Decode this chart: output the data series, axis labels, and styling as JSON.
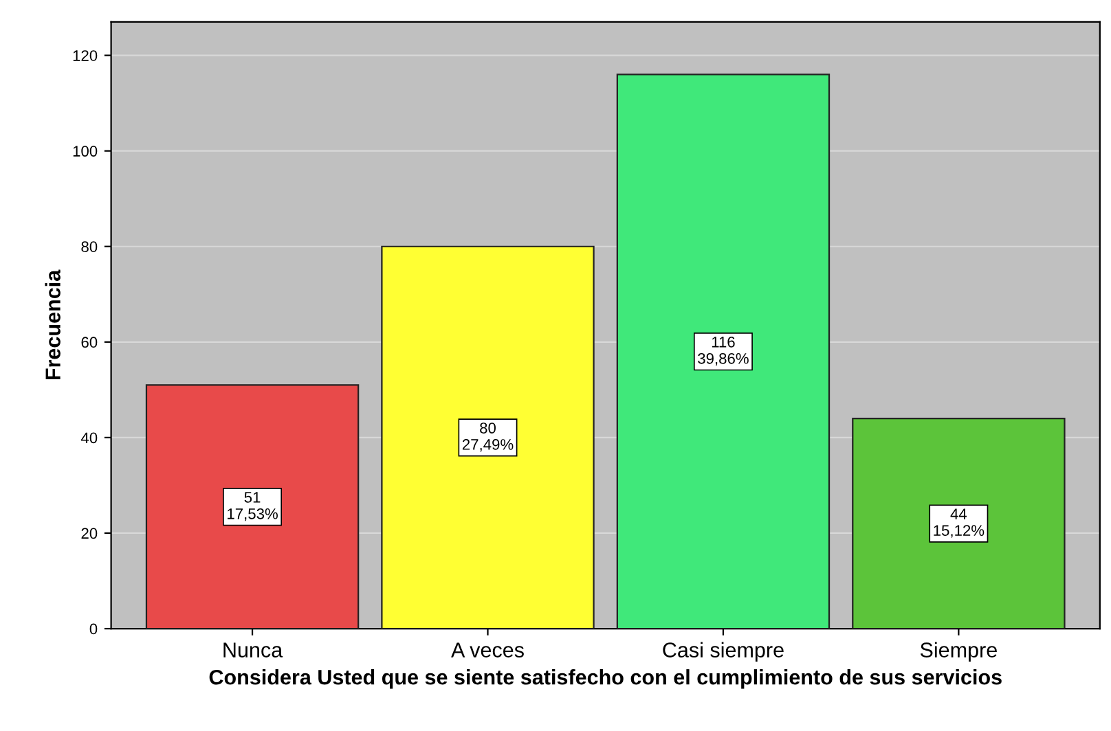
{
  "chart_data": {
    "type": "bar",
    "xlabel": "Considera Usted que se siente satisfecho con el cumplimiento de sus servicios",
    "ylabel": "Frecuencia",
    "categories": [
      "Nunca",
      "A veces",
      "Casi siempre",
      "Siempre"
    ],
    "values": [
      51,
      80,
      116,
      44
    ],
    "colors": [
      "#e84a4a",
      "#ffff33",
      "#40e87a",
      "#5cc43a"
    ],
    "value_labels": [
      "51\n17,53%",
      "80\n27,49%",
      "116\n39,86%",
      "44\n15,12%"
    ],
    "ylim": [
      0,
      127
    ],
    "yticks": [
      0,
      20,
      40,
      60,
      80,
      100,
      120
    ],
    "grid": "y",
    "legend": false
  }
}
